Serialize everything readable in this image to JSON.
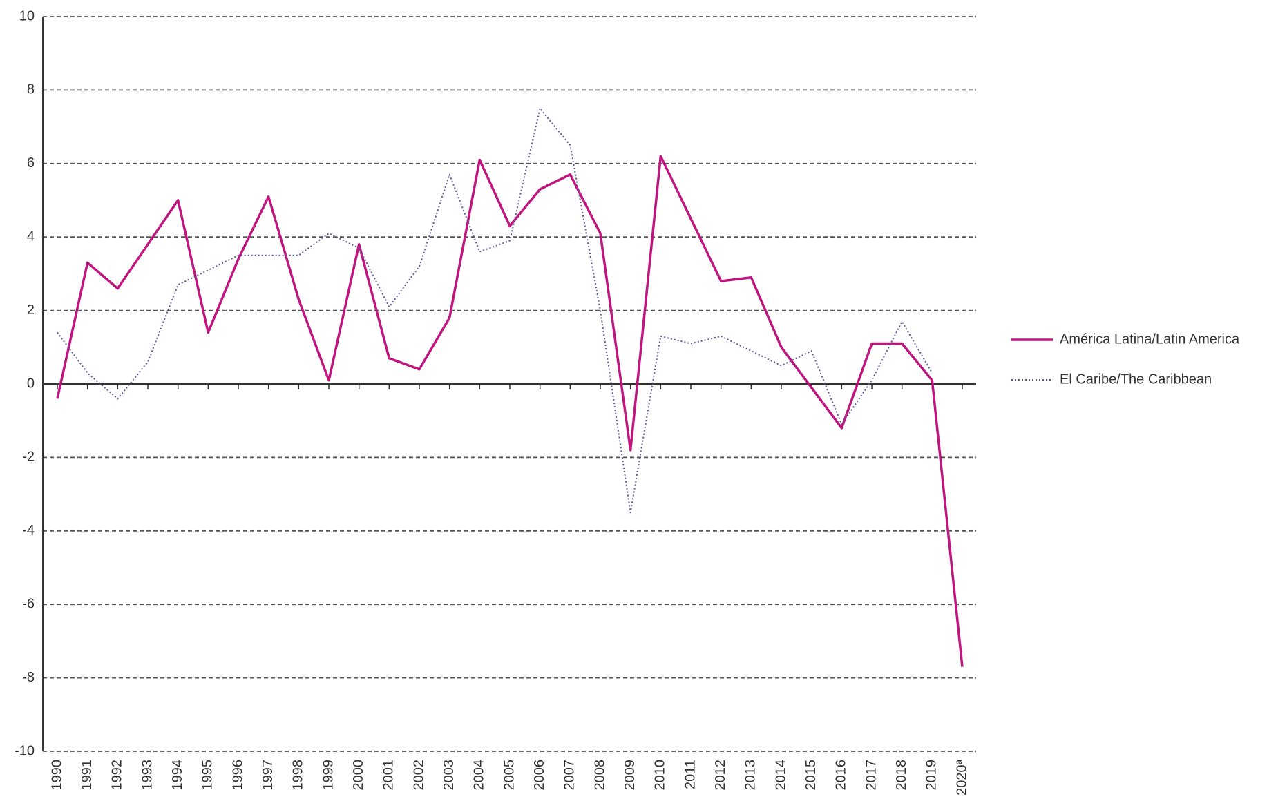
{
  "chart_data": {
    "type": "line",
    "categories": [
      "1990",
      "1991",
      "1992",
      "1993",
      "1994",
      "1995",
      "1996",
      "1997",
      "1998",
      "1999",
      "2000",
      "2001",
      "2002",
      "2003",
      "2004",
      "2005",
      "2006",
      "2007",
      "2008",
      "2009",
      "2010",
      "2011",
      "2012",
      "2013",
      "2014",
      "2015",
      "2016",
      "2017",
      "2018",
      "2019",
      "2020ª"
    ],
    "series": [
      {
        "name": "América Latina/Latin America",
        "color": "#c0157f",
        "style": "solid",
        "values": [
          -0.4,
          3.3,
          2.6,
          3.8,
          5.0,
          1.4,
          3.4,
          5.1,
          2.3,
          0.1,
          3.8,
          0.7,
          0.4,
          1.8,
          6.1,
          4.3,
          5.3,
          5.7,
          4.1,
          -1.8,
          6.2,
          4.5,
          2.8,
          2.9,
          1.0,
          -0.1,
          -1.2,
          1.1,
          1.1,
          0.1,
          -7.7
        ]
      },
      {
        "name": "El Caribe/The Caribbean",
        "color": "#5a5a9a",
        "style": "dotted",
        "values": [
          1.4,
          0.3,
          -0.4,
          0.6,
          2.7,
          3.1,
          3.5,
          3.5,
          3.5,
          4.1,
          3.7,
          2.1,
          3.2,
          5.7,
          3.6,
          3.9,
          7.5,
          6.5,
          2.0,
          -3.5,
          1.3,
          1.1,
          1.3,
          0.9,
          0.5,
          0.9,
          -1.1,
          0.1,
          1.7,
          0.3,
          null
        ]
      }
    ],
    "ylim": [
      -10,
      10
    ],
    "yticks": [
      -10,
      -8,
      -6,
      -4,
      -2,
      0,
      2,
      4,
      6,
      8,
      10
    ],
    "grid": true,
    "legend": "right"
  }
}
